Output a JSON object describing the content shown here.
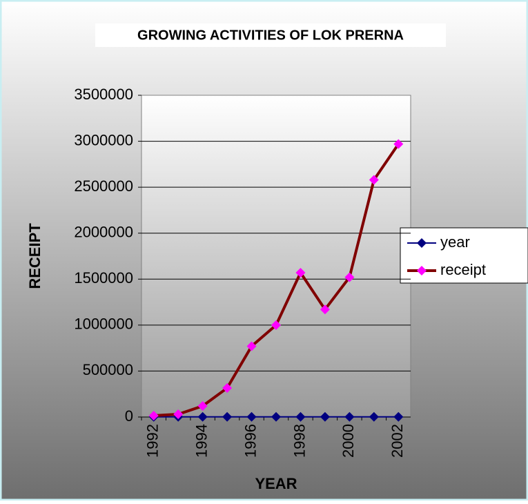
{
  "chart_data": {
    "type": "line",
    "title": "GROWING ACTIVITIES OF LOK PRERNA",
    "x_label": "YEAR",
    "y_label": "RECEIPT",
    "categories": [
      "1992",
      null,
      "1994",
      null,
      "1996",
      null,
      "1998",
      null,
      "2000",
      null,
      "2002"
    ],
    "series": [
      {
        "name": "year",
        "color": "#000080",
        "values": [
          1992,
          1993,
          1994,
          1995,
          1996,
          1997,
          1998,
          1999,
          2000,
          2001,
          2002
        ]
      },
      {
        "name": "receipt",
        "color": "#800000",
        "marker_color": "#ff00ff",
        "values": [
          15000,
          30000,
          120000,
          315000,
          770000,
          1000000,
          1570000,
          1170000,
          1520000,
          2580000,
          2970000
        ]
      }
    ],
    "ylim": [
      0,
      3500000
    ],
    "yticks": [
      0,
      500000,
      1000000,
      1500000,
      2000000,
      2500000,
      3000000,
      3500000
    ],
    "grid": true,
    "legend": "right"
  }
}
